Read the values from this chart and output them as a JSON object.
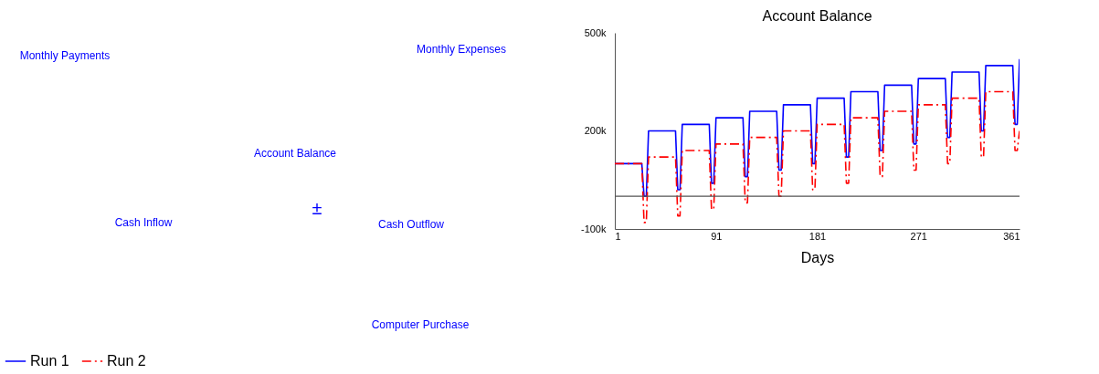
{
  "chart_data": [
    {
      "type": "other",
      "annotations": [
        "Monthly Payments",
        "Monthly Expenses",
        "Account Balance",
        "±",
        "Cash Inflow",
        "Cash Outflow",
        "Computer Purchase"
      ],
      "color": "#0000ff"
    },
    {
      "type": "line",
      "title": "Account Balance",
      "xlabel": "Days",
      "xlim": [
        1,
        361
      ],
      "xticks": [
        1,
        91,
        181,
        271,
        361
      ],
      "ylim": [
        -100000,
        500000
      ],
      "yticks": [
        {
          "value": 500000,
          "label": "500k"
        },
        {
          "value": 200000,
          "label": "200k"
        },
        {
          "value": -100000,
          "label": "-100k"
        }
      ],
      "grid": false,
      "legend": "bottom",
      "ref_lines": [
        {
          "axis": "y",
          "value": 0,
          "color": "#555555"
        }
      ],
      "series": [
        {
          "name": "Run 1",
          "color": "#0000ff",
          "line_style": "solid",
          "x": [
            1,
            25,
            27,
            29,
            31,
            55,
            57,
            59,
            61,
            85,
            87,
            89,
            91,
            115,
            117,
            119,
            121,
            145,
            147,
            149,
            151,
            175,
            177,
            179,
            181,
            205,
            207,
            209,
            211,
            235,
            237,
            239,
            241,
            265,
            267,
            269,
            271,
            295,
            297,
            299,
            301,
            325,
            327,
            329,
            331,
            355,
            357,
            359,
            361
          ],
          "values": [
            100000,
            100000,
            0,
            0,
            200000,
            200000,
            20000,
            20000,
            220000,
            220000,
            40000,
            40000,
            240000,
            240000,
            60000,
            60000,
            260000,
            260000,
            80000,
            80000,
            280000,
            280000,
            100000,
            100000,
            300000,
            300000,
            120000,
            120000,
            320000,
            320000,
            140000,
            140000,
            340000,
            340000,
            160000,
            160000,
            360000,
            360000,
            180000,
            180000,
            380000,
            380000,
            200000,
            200000,
            400000,
            400000,
            220000,
            220000,
            420000
          ]
        },
        {
          "name": "Run 2",
          "color": "#ff0000",
          "line_style": "dashed",
          "x": [
            1,
            25,
            27,
            29,
            31,
            55,
            57,
            59,
            61,
            85,
            87,
            89,
            91,
            115,
            117,
            119,
            121,
            145,
            147,
            149,
            151,
            175,
            177,
            179,
            181,
            205,
            207,
            209,
            211,
            235,
            237,
            239,
            241,
            265,
            267,
            269,
            271,
            295,
            297,
            299,
            301,
            325,
            327,
            329,
            331,
            355,
            357,
            359,
            361
          ],
          "values": [
            100000,
            100000,
            -80000,
            -80000,
            120000,
            120000,
            -60000,
            -60000,
            140000,
            140000,
            -40000,
            -40000,
            160000,
            160000,
            -20000,
            -20000,
            180000,
            180000,
            0,
            0,
            200000,
            200000,
            20000,
            20000,
            220000,
            220000,
            40000,
            40000,
            240000,
            240000,
            60000,
            60000,
            260000,
            260000,
            80000,
            80000,
            280000,
            280000,
            100000,
            100000,
            300000,
            300000,
            120000,
            120000,
            320000,
            320000,
            140000,
            140000,
            200000
          ]
        }
      ]
    }
  ]
}
